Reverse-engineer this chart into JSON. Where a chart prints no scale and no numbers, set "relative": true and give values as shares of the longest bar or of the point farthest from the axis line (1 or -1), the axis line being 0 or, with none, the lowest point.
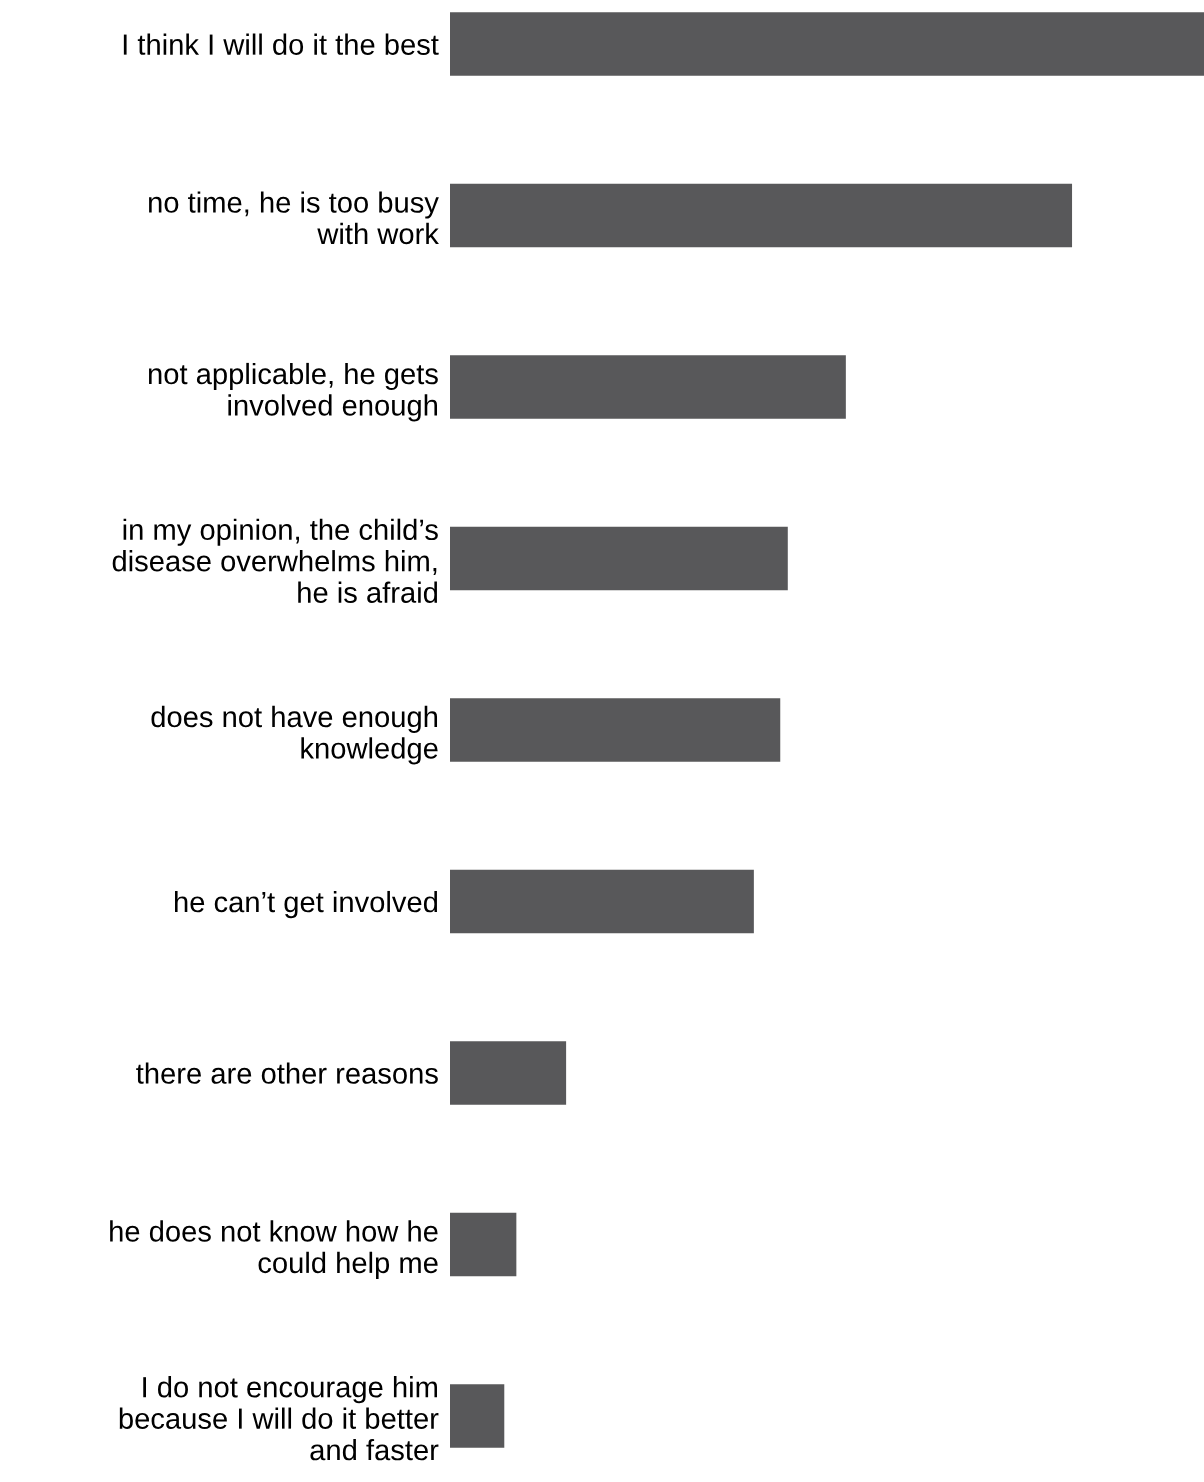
{
  "chart_data": {
    "type": "bar",
    "orientation": "horizontal",
    "relative": true,
    "categories": [
      "I think I will do it the best",
      "no time, he is too busy\nwith work",
      "not applicable, he gets\ninvolved enough",
      "in my opinion, the child’s\ndisease overwhelms him,\nhe is afraid",
      "does not have enough\nknowledge",
      "he can’t get involved",
      "there are other reasons",
      "he does not know how he\ncould help me",
      "I do not encourage him\nbecause I will do it better\nand faster"
    ],
    "values": [
      1,
      0.825,
      0.525,
      0.448,
      0.438,
      0.403,
      0.154,
      0.088,
      0.072
    ],
    "color": "#58585a",
    "grid": false,
    "legend": false
  }
}
